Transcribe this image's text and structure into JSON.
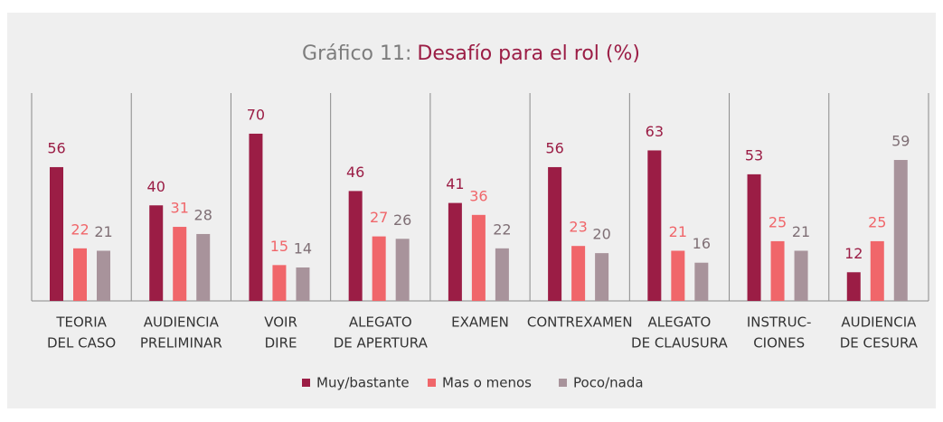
{
  "chart_data": {
    "type": "bar",
    "title_label": "Gráfico 11:",
    "title": "Desafío para el rol (%)",
    "categories": [
      [
        "TEORIA",
        "DEL CASO"
      ],
      [
        "AUDIENCIA",
        "PRELIMINAR"
      ],
      [
        "VOIR",
        "DIRE"
      ],
      [
        "ALEGATO",
        "DE APERTURA"
      ],
      [
        "EXAMEN"
      ],
      [
        "CONTREXAMEN"
      ],
      [
        "ALEGATO",
        "DE CLAUSURA"
      ],
      [
        "INSTRUC-",
        "CIONES"
      ],
      [
        "AUDIENCIA",
        "DE CESURA"
      ]
    ],
    "series": [
      {
        "name": "Muy/bastante",
        "color": "#9b1d45",
        "values": [
          56,
          40,
          70,
          46,
          41,
          56,
          63,
          53,
          12
        ]
      },
      {
        "name": "Mas o menos",
        "color": "#f0666a",
        "values": [
          22,
          31,
          15,
          27,
          36,
          23,
          21,
          25,
          25
        ]
      },
      {
        "name": "Poco/nada",
        "color": "#a8939b",
        "values": [
          21,
          28,
          14,
          26,
          22,
          20,
          16,
          21,
          59
        ]
      }
    ],
    "ylim": [
      0,
      87
    ],
    "legend": "bottom"
  }
}
